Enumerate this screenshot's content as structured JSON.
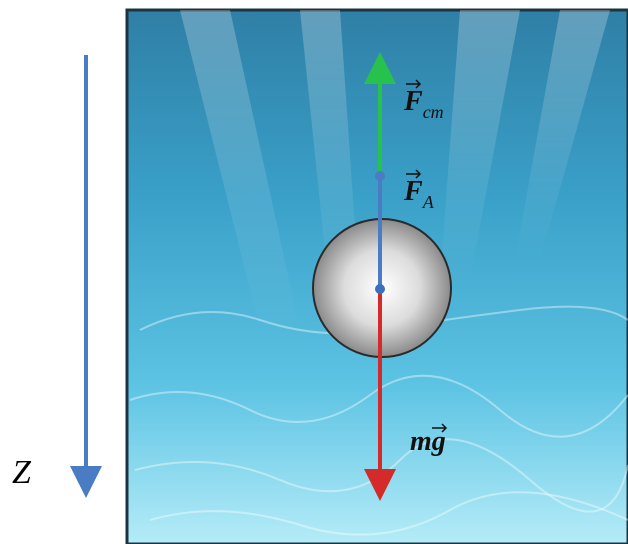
{
  "axis": {
    "label": "Z"
  },
  "forces": [
    {
      "symbol": "F",
      "subscript": "cm"
    },
    {
      "symbol": "F",
      "subscript": "A"
    },
    {
      "prefix": "m",
      "symbol": "g"
    }
  ]
}
